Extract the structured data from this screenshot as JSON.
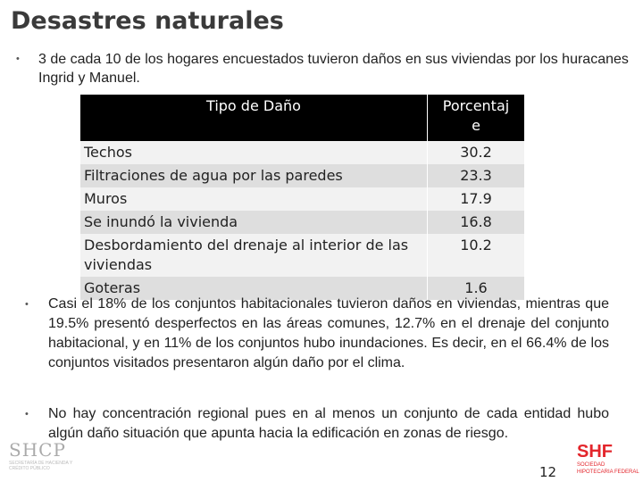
{
  "title": "Desastres naturales",
  "bullet_1": "3 de cada 10 de los hogares encuestados tuvieron daños en sus viviendas por los huracanes Ingrid y Manuel.",
  "table": {
    "headers": [
      "Tipo de Daño",
      "Porcentaj\ne"
    ],
    "rows": [
      {
        "type": "Techos",
        "pct": "30.2"
      },
      {
        "type": "Filtraciones de agua por las paredes",
        "pct": "23.3"
      },
      {
        "type": "Muros",
        "pct": "17.9"
      },
      {
        "type": "Se inundó la vivienda",
        "pct": "16.8"
      },
      {
        "type": "Desbordamiento del drenaje al interior de las viviendas",
        "pct": "10.2"
      },
      {
        "type": "Goteras",
        "pct": "1.6"
      }
    ]
  },
  "bullet_2": "Casi el 18% de los conjuntos habitacionales tuvieron daños en viviendas, mientras que 19.5% presentó desperfectos en las áreas comunes, 12.7% en el drenaje del conjunto habitacional, y en 11% de los conjuntos hubo inundaciones. Es decir, en el 66.4% de los conjuntos visitados presentaron algún daño por el clima.",
  "bullet_3": "No hay concentración regional pues en al menos un conjunto de cada entidad hubo algún daño situación que apunta hacia la edificación en zonas de riesgo.",
  "bullet_symbol": "•",
  "footer": {
    "logo_left": "SHCP",
    "logo_left_sub": "SECRETARÍA DE HACIENDA Y CRÉDITO PÚBLICO",
    "page_number": "12",
    "logo_right": "SHF",
    "logo_right_sub": "SOCIEDAD HIPOTECARIA FEDERAL"
  },
  "colors": {
    "table_header_bg": "#000000",
    "brand_red": "#e3262c"
  }
}
